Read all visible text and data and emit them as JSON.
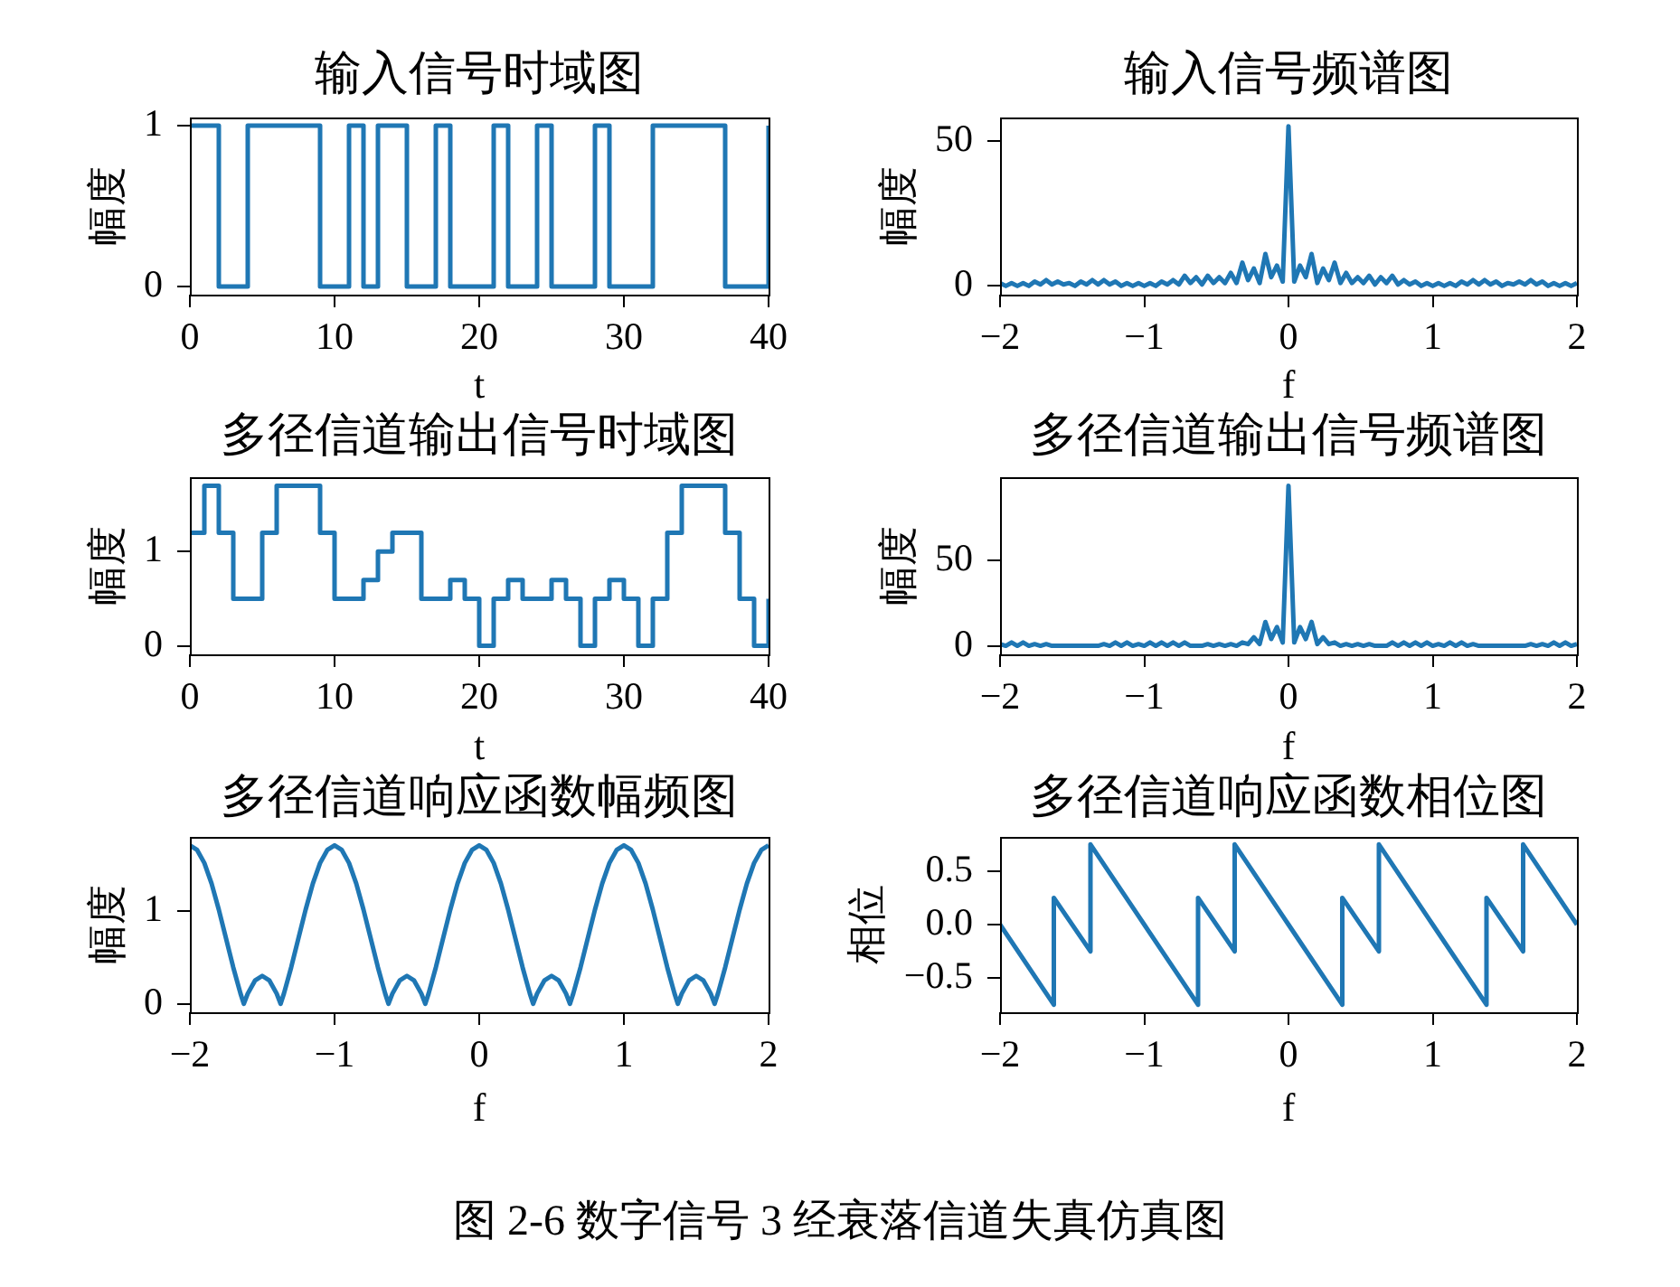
{
  "chart_data": [
    {
      "type": "step",
      "title": "输入信号时域图",
      "xlabel": "t",
      "ylabel": "幅度",
      "color": "#1f77b4",
      "x": [
        0,
        1,
        2,
        3,
        4,
        5,
        6,
        7,
        8,
        9,
        10,
        11,
        12,
        13,
        14,
        15,
        16,
        17,
        18,
        19,
        20,
        21,
        22,
        23,
        24,
        25,
        26,
        27,
        28,
        29,
        30,
        31,
        32,
        33,
        34,
        35,
        36,
        37,
        38,
        39,
        40
      ],
      "values": [
        1,
        1,
        0,
        0,
        1,
        1,
        1,
        1,
        1,
        0,
        0,
        1,
        0,
        1,
        1,
        0,
        0,
        1,
        0,
        0,
        0,
        1,
        0,
        0,
        1,
        0,
        0,
        0,
        1,
        0,
        0,
        0,
        1,
        1,
        1,
        1,
        1,
        0,
        0,
        0,
        1
      ],
      "xlim": [
        0,
        40
      ],
      "xticks": [
        0,
        10,
        20,
        30,
        40
      ],
      "ylim": [
        -0.05,
        1.05
      ],
      "yticks": [
        0,
        1
      ]
    },
    {
      "type": "line",
      "title": "输入信号频谱图",
      "xlabel": "f",
      "ylabel": "幅度",
      "color": "#1f77b4",
      "x": [
        -2,
        -1.96,
        -1.92,
        -1.88,
        -1.84,
        -1.8,
        -1.76,
        -1.72,
        -1.68,
        -1.64,
        -1.6,
        -1.56,
        -1.52,
        -1.48,
        -1.44,
        -1.4,
        -1.36,
        -1.32,
        -1.28,
        -1.24,
        -1.2,
        -1.16,
        -1.12,
        -1.08,
        -1.04,
        -1,
        -0.96,
        -0.92,
        -0.88,
        -0.84,
        -0.8,
        -0.76,
        -0.72,
        -0.68,
        -0.64,
        -0.6,
        -0.56,
        -0.52,
        -0.48,
        -0.44,
        -0.4,
        -0.36,
        -0.32,
        -0.28,
        -0.24,
        -0.2,
        -0.16,
        -0.12,
        -0.08,
        -0.04,
        0,
        0.04,
        0.08,
        0.12,
        0.16,
        0.2,
        0.24,
        0.28,
        0.32,
        0.36,
        0.4,
        0.44,
        0.48,
        0.52,
        0.56,
        0.6,
        0.64,
        0.68,
        0.72,
        0.76,
        0.8,
        0.84,
        0.88,
        0.92,
        0.96,
        1,
        1.04,
        1.08,
        1.12,
        1.16,
        1.2,
        1.24,
        1.28,
        1.32,
        1.36,
        1.4,
        1.44,
        1.48,
        1.52,
        1.56,
        1.6,
        1.64,
        1.68,
        1.72,
        1.76,
        1.8,
        1.84,
        1.88,
        1.92,
        1.96,
        2
      ],
      "values": [
        1,
        0,
        1,
        0,
        1,
        0,
        1.5,
        0.5,
        2,
        0.5,
        1.5,
        0.5,
        1,
        0,
        1.5,
        0.5,
        2,
        0.5,
        2,
        0.5,
        1.5,
        0,
        1,
        0,
        1,
        0,
        1,
        0,
        1.5,
        0.5,
        2,
        0.5,
        3.5,
        1,
        3,
        0.5,
        3.5,
        1,
        3,
        1,
        4.5,
        1,
        8,
        2,
        6,
        1,
        11,
        3,
        7,
        1.5,
        55,
        1.5,
        7,
        3,
        11,
        1,
        6,
        2,
        8,
        1,
        4.5,
        1,
        3,
        1,
        3.5,
        0.5,
        3,
        1,
        3.5,
        0.5,
        2,
        0.5,
        1.5,
        0,
        1,
        0,
        1,
        0,
        1,
        0,
        1.5,
        0.5,
        2,
        0.5,
        2,
        0.5,
        1.5,
        0,
        1,
        0.5,
        1.5,
        0.5,
        2,
        0.5,
        1.5,
        0,
        1,
        0,
        1,
        0,
        1
      ],
      "xlim": [
        -2,
        2
      ],
      "xticks": [
        -2,
        -1,
        0,
        1,
        2
      ],
      "ylim": [
        -3,
        58
      ],
      "yticks": [
        0,
        50
      ]
    },
    {
      "type": "step",
      "title": "多径信道输出信号时域图",
      "xlabel": "t",
      "ylabel": "幅度",
      "color": "#1f77b4",
      "x": [
        0,
        1,
        2,
        3,
        4,
        5,
        6,
        7,
        8,
        9,
        10,
        11,
        12,
        13,
        14,
        15,
        16,
        17,
        18,
        19,
        20,
        21,
        22,
        23,
        24,
        25,
        26,
        27,
        28,
        29,
        30,
        31,
        32,
        33,
        34,
        35,
        36,
        37,
        38,
        39,
        40
      ],
      "values": [
        1.2,
        1.7,
        1.2,
        0.5,
        0.5,
        1.2,
        1.7,
        1.7,
        1.7,
        1.2,
        0.5,
        0.5,
        0.7,
        1.0,
        1.2,
        1.2,
        0.5,
        0.5,
        0.7,
        0.5,
        0,
        0.5,
        0.7,
        0.5,
        0.5,
        0.7,
        0.5,
        0,
        0.5,
        0.7,
        0.5,
        0,
        0.5,
        1.2,
        1.7,
        1.7,
        1.7,
        1.2,
        0.5,
        0,
        0.5
      ],
      "xlim": [
        0,
        40
      ],
      "xticks": [
        0,
        10,
        20,
        30,
        40
      ],
      "ylim": [
        -0.09,
        1.79
      ],
      "yticks": [
        0,
        1
      ]
    },
    {
      "type": "line",
      "title": "多径信道输出信号频谱图",
      "xlabel": "f",
      "ylabel": "幅度",
      "color": "#1f77b4",
      "x": [
        -2,
        -1.96,
        -1.92,
        -1.88,
        -1.84,
        -1.8,
        -1.76,
        -1.72,
        -1.68,
        -1.64,
        -1.6,
        -1.56,
        -1.52,
        -1.48,
        -1.44,
        -1.4,
        -1.36,
        -1.32,
        -1.28,
        -1.24,
        -1.2,
        -1.16,
        -1.12,
        -1.08,
        -1.04,
        -1,
        -0.96,
        -0.92,
        -0.88,
        -0.84,
        -0.8,
        -0.76,
        -0.72,
        -0.68,
        -0.64,
        -0.6,
        -0.56,
        -0.52,
        -0.48,
        -0.44,
        -0.4,
        -0.36,
        -0.32,
        -0.28,
        -0.24,
        -0.2,
        -0.16,
        -0.12,
        -0.08,
        -0.04,
        0,
        0.04,
        0.08,
        0.12,
        0.16,
        0.2,
        0.24,
        0.28,
        0.32,
        0.36,
        0.4,
        0.44,
        0.48,
        0.52,
        0.56,
        0.6,
        0.64,
        0.68,
        0.72,
        0.76,
        0.8,
        0.84,
        0.88,
        0.92,
        0.96,
        1,
        1.04,
        1.08,
        1.12,
        1.16,
        1.2,
        1.24,
        1.28,
        1.32,
        1.36,
        1.4,
        1.44,
        1.48,
        1.52,
        1.56,
        1.6,
        1.64,
        1.68,
        1.72,
        1.76,
        1.8,
        1.84,
        1.88,
        1.92,
        1.96,
        2
      ],
      "values": [
        1,
        0,
        2,
        0,
        2,
        0,
        1,
        0,
        1,
        0,
        0,
        0,
        0,
        0,
        0,
        0,
        0,
        0,
        1,
        0,
        2,
        0,
        2,
        0,
        1,
        0,
        2,
        0,
        2,
        0,
        2,
        0,
        2,
        0,
        0,
        0,
        1,
        0,
        1,
        0,
        1,
        0,
        2,
        1,
        5,
        1,
        14,
        4,
        11,
        2,
        94,
        2,
        11,
        4,
        14,
        1,
        5,
        1,
        2,
        0,
        1,
        0,
        1,
        0,
        1,
        0,
        0,
        0,
        2,
        0,
        2,
        0,
        2,
        0,
        2,
        0,
        1,
        0,
        2,
        0,
        2,
        0,
        1,
        0,
        0,
        0,
        0,
        0,
        0,
        0,
        0,
        0,
        1,
        0,
        1,
        0,
        2,
        0,
        2,
        0,
        1
      ],
      "xlim": [
        -2,
        2
      ],
      "xticks": [
        -2,
        -1,
        0,
        1,
        2
      ],
      "ylim": [
        -5,
        99
      ],
      "yticks": [
        0,
        50
      ]
    },
    {
      "type": "line",
      "title": "多径信道响应函数幅频图",
      "xlabel": "f",
      "ylabel": "幅度",
      "color": "#1f77b4",
      "x": [
        -2,
        -1.95,
        -1.9,
        -1.85,
        -1.8,
        -1.75,
        -1.7,
        -1.65,
        -1.627,
        -1.6,
        -1.55,
        -1.5,
        -1.45,
        -1.4,
        -1.373,
        -1.35,
        -1.3,
        -1.25,
        -1.2,
        -1.15,
        -1.1,
        -1.05,
        -1,
        -0.95,
        -0.9,
        -0.85,
        -0.8,
        -0.75,
        -0.7,
        -0.65,
        -0.627,
        -0.6,
        -0.55,
        -0.5,
        -0.45,
        -0.4,
        -0.373,
        -0.35,
        -0.3,
        -0.25,
        -0.2,
        -0.15,
        -0.1,
        -0.05,
        0,
        0.05,
        0.1,
        0.15,
        0.2,
        0.25,
        0.3,
        0.35,
        0.373,
        0.4,
        0.45,
        0.5,
        0.55,
        0.6,
        0.627,
        0.65,
        0.7,
        0.75,
        0.8,
        0.85,
        0.9,
        0.95,
        1,
        1.05,
        1.1,
        1.15,
        1.2,
        1.25,
        1.3,
        1.35,
        1.373,
        1.4,
        1.45,
        1.5,
        1.55,
        1.6,
        1.627,
        1.65,
        1.7,
        1.75,
        1.8,
        1.85,
        1.9,
        1.95,
        2
      ],
      "values": [
        1.7,
        1.65,
        1.51,
        1.29,
        1.01,
        0.7,
        0.39,
        0.11,
        0,
        0.11,
        0.25,
        0.3,
        0.25,
        0.11,
        0,
        0.11,
        0.39,
        0.7,
        1.01,
        1.29,
        1.51,
        1.65,
        1.7,
        1.65,
        1.51,
        1.29,
        1.01,
        0.7,
        0.39,
        0.11,
        0,
        0.11,
        0.25,
        0.3,
        0.25,
        0.11,
        0,
        0.11,
        0.39,
        0.7,
        1.01,
        1.29,
        1.51,
        1.65,
        1.7,
        1.65,
        1.51,
        1.29,
        1.01,
        0.7,
        0.39,
        0.11,
        0,
        0.11,
        0.25,
        0.3,
        0.25,
        0.11,
        0,
        0.11,
        0.39,
        0.7,
        1.01,
        1.29,
        1.51,
        1.65,
        1.7,
        1.65,
        1.51,
        1.29,
        1.01,
        0.7,
        0.39,
        0.11,
        0,
        0.11,
        0.25,
        0.3,
        0.25,
        0.11,
        0,
        0.11,
        0.39,
        0.7,
        1.01,
        1.29,
        1.51,
        1.65,
        1.7
      ],
      "xlim": [
        -2,
        2
      ],
      "xticks": [
        -2,
        -1,
        0,
        1,
        2
      ],
      "ylim": [
        -0.09,
        1.79
      ],
      "yticks": [
        0,
        1
      ]
    },
    {
      "type": "line",
      "title": "多径信道响应函数相位图",
      "xlabel": "f",
      "ylabel": "相位",
      "color": "#1f77b4",
      "x": [
        -2,
        -1.627,
        -1.627,
        -1.373,
        -1.373,
        -1,
        -0.627,
        -0.627,
        -0.373,
        -0.373,
        0,
        0.373,
        0.373,
        0.627,
        0.627,
        1,
        1.373,
        1.373,
        1.627,
        1.627,
        2
      ],
      "values": [
        0,
        -0.75,
        0.25,
        -0.25,
        0.75,
        0,
        -0.75,
        0.25,
        -0.25,
        0.75,
        0,
        -0.75,
        0.25,
        -0.25,
        0.75,
        0,
        -0.75,
        0.25,
        -0.25,
        0.75,
        0
      ],
      "xlim": [
        -2,
        2
      ],
      "xticks": [
        -2,
        -1,
        0,
        1,
        2
      ],
      "ylim": [
        -0.82,
        0.82
      ],
      "yticks": [
        {
          "value": -0.5,
          "label": "−0.5"
        },
        {
          "value": 0,
          "label": "0.0"
        },
        0.5
      ]
    },
    {
      "type": "other",
      "annotations": [
        "图 2-6 数字信号 3 经衰落信道失真仿真图"
      ]
    }
  ]
}
